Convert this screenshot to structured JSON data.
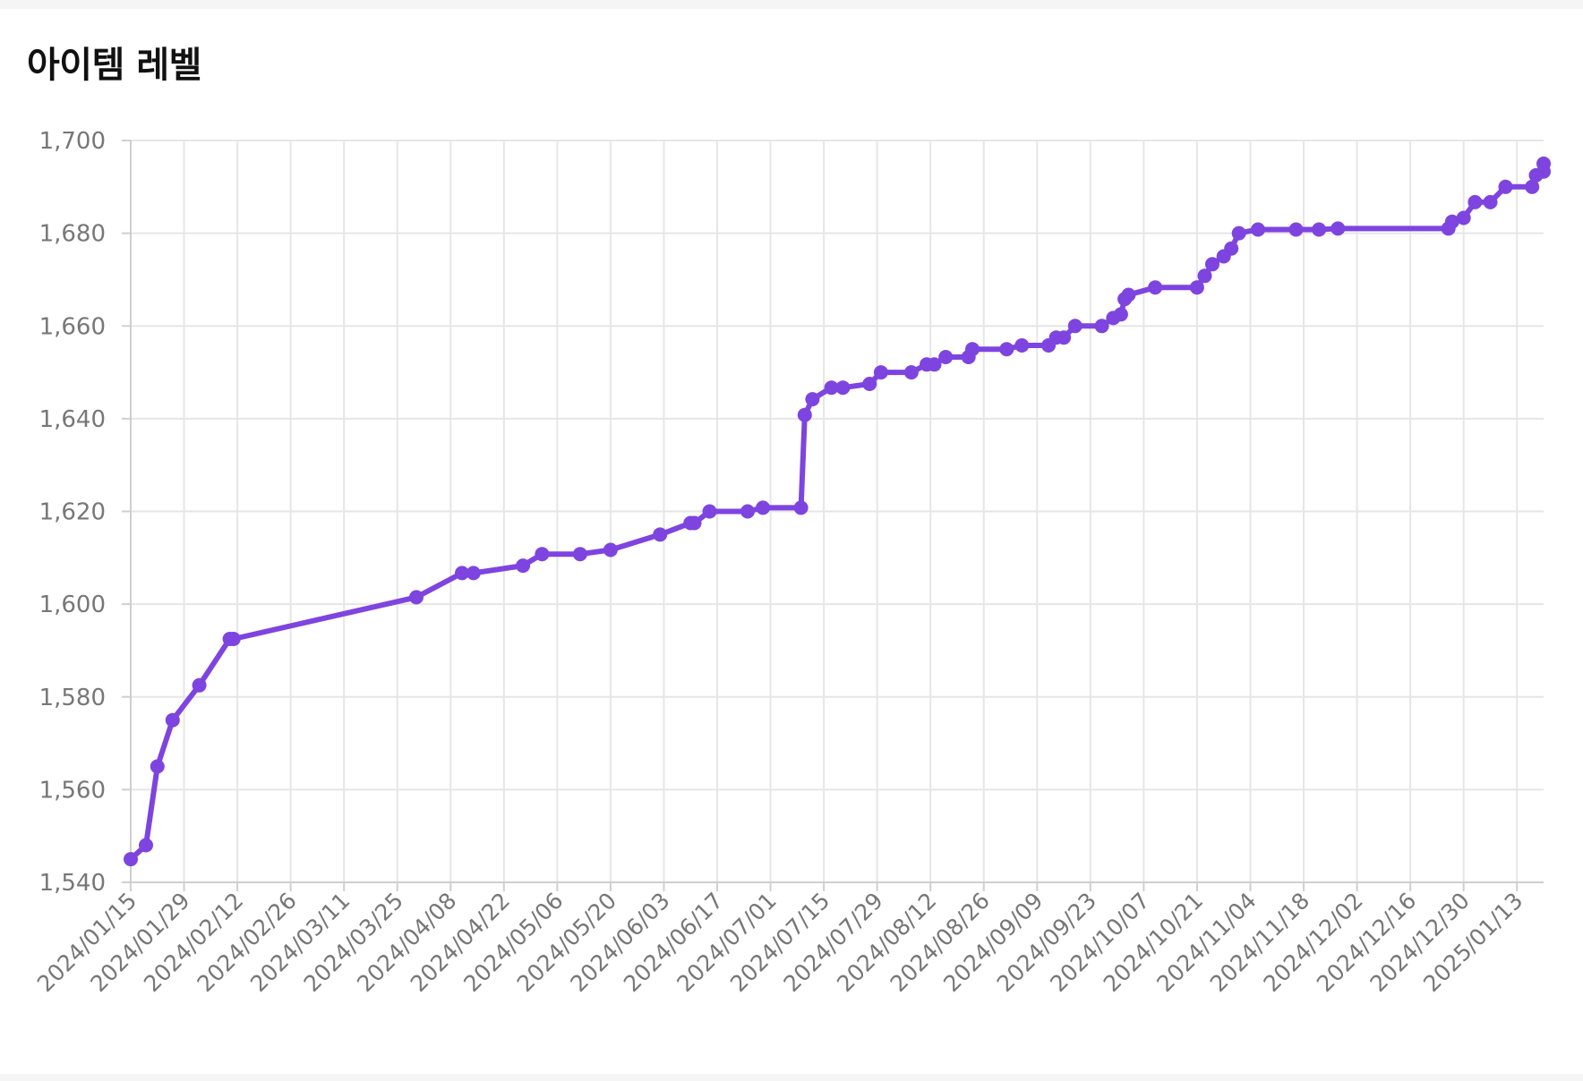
{
  "chart_data": {
    "type": "line",
    "title": "아이템 레벨",
    "xlabel": "",
    "ylabel": "",
    "ylim": [
      1540,
      1700
    ],
    "y_ticks": [
      1540,
      1560,
      1580,
      1600,
      1620,
      1640,
      1660,
      1680,
      1700
    ],
    "x_range": [
      "2024-01-15",
      "2025-01-20"
    ],
    "x_ticks": [
      "2024/01/15",
      "2024/01/29",
      "2024/02/12",
      "2024/02/26",
      "2024/03/11",
      "2024/03/25",
      "2024/04/08",
      "2024/04/22",
      "2024/05/06",
      "2024/05/20",
      "2024/06/03",
      "2024/06/17",
      "2024/07/01",
      "2024/07/15",
      "2024/07/29",
      "2024/08/12",
      "2024/08/26",
      "2024/09/09",
      "2024/09/23",
      "2024/10/07",
      "2024/10/21",
      "2024/11/04",
      "2024/11/18",
      "2024/12/02",
      "2024/12/16",
      "2024/12/30",
      "2025/01/13"
    ],
    "grid": true,
    "legend": "none",
    "series": [
      {
        "name": "",
        "color": "#7e44e0",
        "points": [
          {
            "x": "2024-01-15",
            "y": 1545
          },
          {
            "x": "2024-01-19",
            "y": 1548
          },
          {
            "x": "2024-01-22",
            "y": 1565
          },
          {
            "x": "2024-01-26",
            "y": 1575
          },
          {
            "x": "2024-02-02",
            "y": 1582.5
          },
          {
            "x": "2024-02-10",
            "y": 1592.5
          },
          {
            "x": "2024-02-11",
            "y": 1592.5
          },
          {
            "x": "2024-03-30",
            "y": 1601.5
          },
          {
            "x": "2024-04-11",
            "y": 1606.7
          },
          {
            "x": "2024-04-14",
            "y": 1606.7
          },
          {
            "x": "2024-04-27",
            "y": 1608.3
          },
          {
            "x": "2024-05-02",
            "y": 1610.8
          },
          {
            "x": "2024-05-12",
            "y": 1610.8
          },
          {
            "x": "2024-05-20",
            "y": 1611.7
          },
          {
            "x": "2024-06-02",
            "y": 1615
          },
          {
            "x": "2024-06-10",
            "y": 1617.5
          },
          {
            "x": "2024-06-11",
            "y": 1617.5
          },
          {
            "x": "2024-06-15",
            "y": 1620
          },
          {
            "x": "2024-06-25",
            "y": 1620
          },
          {
            "x": "2024-06-29",
            "y": 1620.8
          },
          {
            "x": "2024-07-09",
            "y": 1620.8
          },
          {
            "x": "2024-07-10",
            "y": 1640.8
          },
          {
            "x": "2024-07-12",
            "y": 1644.2
          },
          {
            "x": "2024-07-17",
            "y": 1646.7
          },
          {
            "x": "2024-07-20",
            "y": 1646.7
          },
          {
            "x": "2024-07-27",
            "y": 1647.5
          },
          {
            "x": "2024-07-30",
            "y": 1650
          },
          {
            "x": "2024-08-07",
            "y": 1650
          },
          {
            "x": "2024-08-11",
            "y": 1651.7
          },
          {
            "x": "2024-08-13",
            "y": 1651.7
          },
          {
            "x": "2024-08-16",
            "y": 1653.3
          },
          {
            "x": "2024-08-22",
            "y": 1653.3
          },
          {
            "x": "2024-08-23",
            "y": 1655
          },
          {
            "x": "2024-09-01",
            "y": 1655
          },
          {
            "x": "2024-09-05",
            "y": 1655.8
          },
          {
            "x": "2024-09-12",
            "y": 1655.8
          },
          {
            "x": "2024-09-14",
            "y": 1657.5
          },
          {
            "x": "2024-09-16",
            "y": 1657.5
          },
          {
            "x": "2024-09-19",
            "y": 1660
          },
          {
            "x": "2024-09-26",
            "y": 1660
          },
          {
            "x": "2024-09-29",
            "y": 1661.7
          },
          {
            "x": "2024-10-01",
            "y": 1662.5
          },
          {
            "x": "2024-10-02",
            "y": 1665.8
          },
          {
            "x": "2024-10-03",
            "y": 1666.7
          },
          {
            "x": "2024-10-10",
            "y": 1668.3
          },
          {
            "x": "2024-10-21",
            "y": 1668.3
          },
          {
            "x": "2024-10-23",
            "y": 1670.8
          },
          {
            "x": "2024-10-25",
            "y": 1673.3
          },
          {
            "x": "2024-10-28",
            "y": 1675
          },
          {
            "x": "2024-10-30",
            "y": 1676.7
          },
          {
            "x": "2024-11-01",
            "y": 1680
          },
          {
            "x": "2024-11-06",
            "y": 1680.8
          },
          {
            "x": "2024-11-16",
            "y": 1680.8
          },
          {
            "x": "2024-11-22",
            "y": 1680.8
          },
          {
            "x": "2024-11-27",
            "y": 1681
          },
          {
            "x": "2024-12-26",
            "y": 1681
          },
          {
            "x": "2024-12-27",
            "y": 1682.5
          },
          {
            "x": "2024-12-30",
            "y": 1683.3
          },
          {
            "x": "2025-01-02",
            "y": 1686.7
          },
          {
            "x": "2025-01-06",
            "y": 1686.7
          },
          {
            "x": "2025-01-10",
            "y": 1690
          },
          {
            "x": "2025-01-17",
            "y": 1690
          },
          {
            "x": "2025-01-18",
            "y": 1692.5
          },
          {
            "x": "2025-01-20",
            "y": 1693.3
          },
          {
            "x": "2025-01-20",
            "y": 1695
          }
        ]
      }
    ]
  }
}
